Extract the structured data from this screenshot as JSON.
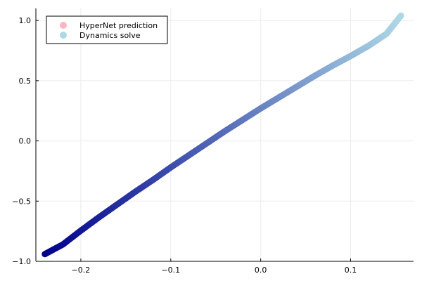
{
  "chart_data": {
    "type": "scatter",
    "title": "",
    "xlabel": "",
    "ylabel": "",
    "xlim": [
      -0.25,
      0.17
    ],
    "ylim": [
      -1.0,
      1.1
    ],
    "xticks": [
      -0.2,
      -0.1,
      0.0,
      0.1
    ],
    "xtick_labels": [
      "−0.2",
      "−0.1",
      "0.0",
      "0.1"
    ],
    "yticks": [
      -1.0,
      -0.5,
      0.0,
      0.5,
      1.0
    ],
    "ytick_labels": [
      "−1.0",
      "−0.5",
      "0.0",
      "0.5",
      "1.0"
    ],
    "grid": true,
    "legend_position": "top-left",
    "series": [
      {
        "name": "HyperNet prediction",
        "color": "#ffb6c1",
        "points": []
      },
      {
        "name": "Dynamics solve",
        "color": "#add8e6",
        "color_start": "#00008b",
        "color_end": "#add8e6",
        "points": [
          [
            -0.24,
            -0.94
          ],
          [
            -0.22,
            -0.86
          ],
          [
            -0.2,
            -0.745
          ],
          [
            -0.18,
            -0.635
          ],
          [
            -0.16,
            -0.53
          ],
          [
            -0.14,
            -0.425
          ],
          [
            -0.12,
            -0.325
          ],
          [
            -0.1,
            -0.22
          ],
          [
            -0.08,
            -0.12
          ],
          [
            -0.06,
            -0.02
          ],
          [
            -0.04,
            0.08
          ],
          [
            -0.02,
            0.175
          ],
          [
            0.0,
            0.27
          ],
          [
            0.02,
            0.36
          ],
          [
            0.04,
            0.45
          ],
          [
            0.06,
            0.54
          ],
          [
            0.08,
            0.625
          ],
          [
            0.1,
            0.705
          ],
          [
            0.12,
            0.79
          ],
          [
            0.14,
            0.89
          ],
          [
            0.156,
            1.04
          ]
        ]
      }
    ]
  }
}
